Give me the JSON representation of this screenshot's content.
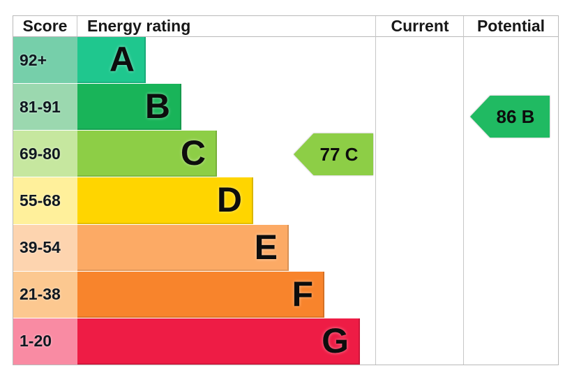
{
  "header": {
    "score": "Score",
    "energy_rating": "Energy rating",
    "current": "Current",
    "potential": "Potential"
  },
  "chart_data": {
    "type": "bar",
    "description_visible_text": "Energy rating bands A-G with score ranges, current and potential rating arrows",
    "bands": [
      {
        "grade": "A",
        "score_range": "92+",
        "color": "#1fc78e",
        "tint": "#76cfaa"
      },
      {
        "grade": "B",
        "score_range": "81-91",
        "color": "#19b459",
        "tint": "#9bd8af"
      },
      {
        "grade": "C",
        "score_range": "69-80",
        "color": "#8dce46",
        "tint": "#c6e79f"
      },
      {
        "grade": "D",
        "score_range": "55-68",
        "color": "#ffd500",
        "tint": "#fff09b"
      },
      {
        "grade": "E",
        "score_range": "39-54",
        "color": "#fcaa65",
        "tint": "#fdd4af"
      },
      {
        "grade": "F",
        "score_range": "21-38",
        "color": "#f8842c",
        "tint": "#fcc890"
      },
      {
        "grade": "G",
        "score_range": "1-20",
        "color": "#ee1c45",
        "tint": "#f98ba3"
      }
    ],
    "ratings": [
      {
        "column": "current",
        "label": "77 C",
        "value": 77,
        "grade": "C",
        "color": "#8dce46"
      },
      {
        "column": "potential",
        "label": "86 B",
        "value": 86,
        "grade": "B",
        "color": "#20ba62"
      }
    ],
    "legend_position": "none",
    "grid": false
  }
}
